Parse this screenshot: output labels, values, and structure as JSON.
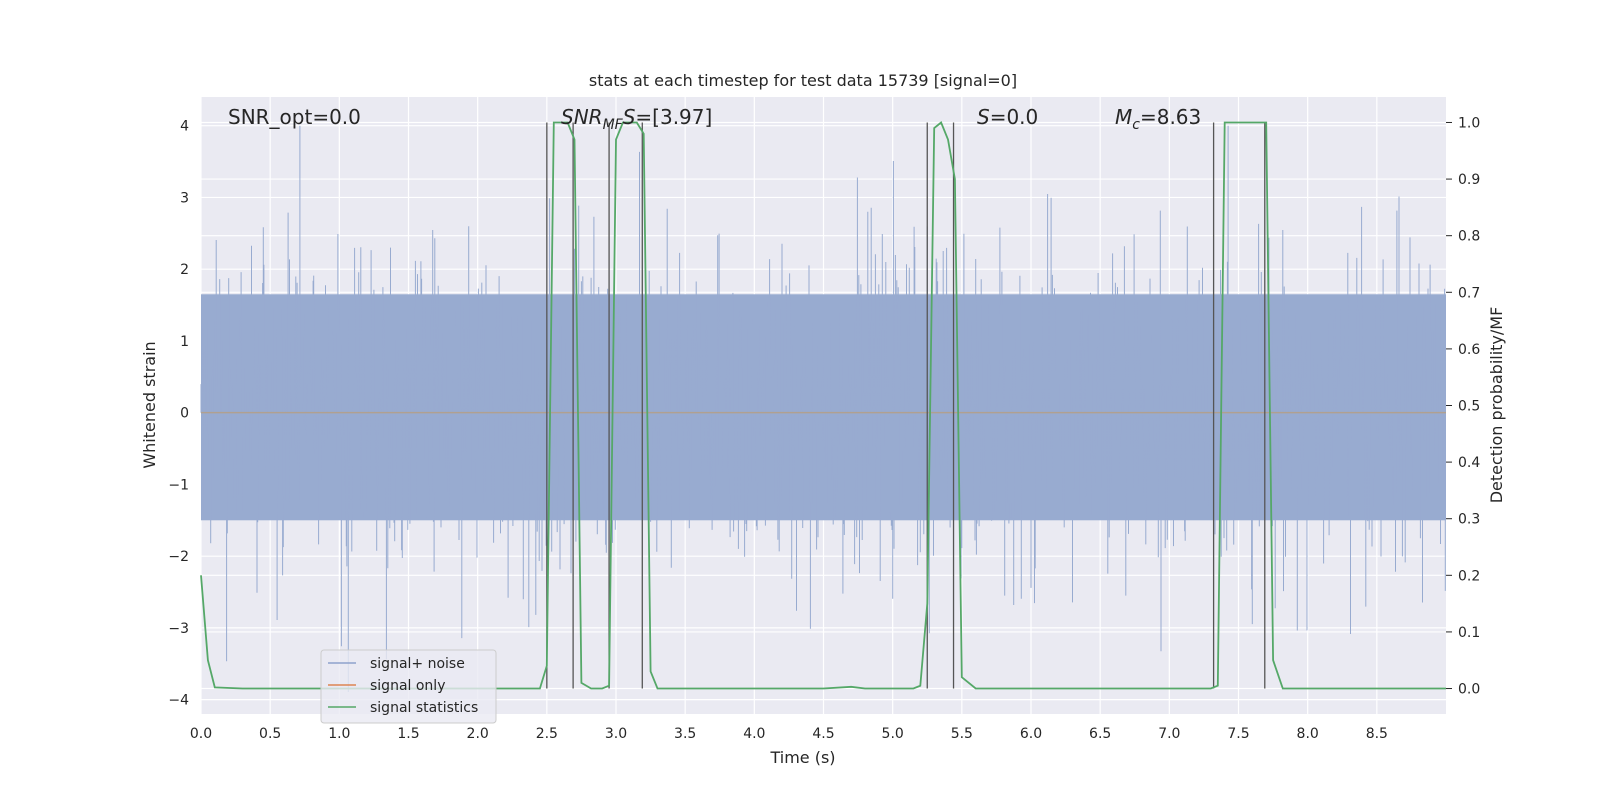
{
  "chart_data": {
    "type": "line",
    "title": "stats at each timestep for test data 15739 [signal=0]",
    "xlabel": "Time (s)",
    "ylabel_left": "Whitened strain",
    "ylabel_right": "Detection probability/MF",
    "xlim": [
      0.0,
      9.0
    ],
    "ylim_left": [
      -4.2,
      4.4
    ],
    "ylim_right": [
      -0.045,
      1.045
    ],
    "x_ticks": [
      "0.0",
      "0.5",
      "1.0",
      "1.5",
      "2.0",
      "2.5",
      "3.0",
      "3.5",
      "4.0",
      "4.5",
      "5.0",
      "5.5",
      "6.0",
      "6.5",
      "7.0",
      "7.5",
      "8.0",
      "8.5"
    ],
    "y_ticks_left": [
      "−4",
      "−3",
      "−2",
      "−1",
      "0",
      "1",
      "2",
      "3",
      "4"
    ],
    "y_ticks_right": [
      "0.0",
      "0.1",
      "0.2",
      "0.3",
      "0.4",
      "0.5",
      "0.6",
      "0.7",
      "0.8",
      "0.9",
      "1.0"
    ],
    "grid": true,
    "legend_position": "bottom-left",
    "annotations": {
      "snr_opt": "SNR_opt=0.0",
      "snr_mf_prefix": "SNR",
      "snr_mf_sub": "MF",
      "snr_mf_value": "=[3.97]",
      "s_letter": "S",
      "s_value": "=0.0",
      "mc_letter": "M",
      "mc_sub": "c",
      "mc_value": "=8.63"
    },
    "series": [
      {
        "name": "signal+ noise",
        "color": "#8ea1cc",
        "description": "whitened strain noise, amplitude roughly within ±4"
      },
      {
        "name": "signal only",
        "color": "#dd8452",
        "values": "flat at 0"
      },
      {
        "name": "signal statistics",
        "color": "#55a868",
        "axis": "right",
        "x": [
          0.0,
          0.05,
          0.1,
          0.3,
          1.0,
          2.0,
          2.45,
          2.5,
          2.55,
          2.6,
          2.65,
          2.7,
          2.75,
          2.82,
          2.9,
          2.95,
          3.0,
          3.05,
          3.1,
          3.15,
          3.2,
          3.25,
          3.3,
          3.4,
          4.0,
          4.5,
          4.7,
          4.8,
          5.0,
          5.15,
          5.2,
          5.25,
          5.3,
          5.35,
          5.4,
          5.45,
          5.5,
          5.6,
          6.0,
          7.0,
          7.3,
          7.35,
          7.4,
          7.5,
          7.6,
          7.7,
          7.75,
          7.82,
          8.0,
          8.5,
          9.0
        ],
        "y": [
          0.2,
          0.05,
          0.002,
          0.0,
          0.0,
          0.0,
          0.0,
          0.04,
          1.0,
          1.0,
          1.0,
          0.97,
          0.01,
          0.0,
          0.0,
          0.005,
          0.97,
          1.0,
          1.0,
          1.0,
          0.98,
          0.03,
          0.0,
          0.0,
          0.0,
          0.0,
          0.003,
          0.0,
          0.0,
          0.0,
          0.005,
          0.15,
          0.99,
          1.0,
          0.97,
          0.9,
          0.02,
          0.0,
          0.0,
          0.0,
          0.0,
          0.005,
          1.0,
          1.0,
          1.0,
          1.0,
          0.05,
          0.0,
          0.0,
          0.0,
          0.0
        ]
      }
    ],
    "vertical_lines": [
      2.5,
      2.69,
      2.95,
      3.19,
      5.25,
      5.44,
      7.32,
      7.69
    ]
  }
}
